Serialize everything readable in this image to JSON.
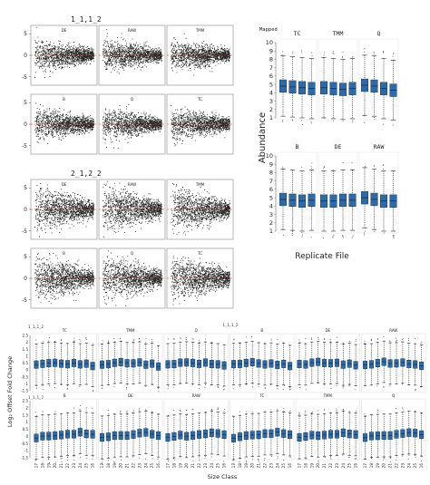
{
  "chart_data": [
    {
      "type": "scatter",
      "subtype": "MA plot grid",
      "title": "1_1,1_2",
      "panels": [
        "DE",
        "RAW",
        "TMM",
        "B",
        "Q",
        "TC"
      ],
      "yticks": [
        "5",
        "0",
        "-5"
      ],
      "reference_line_y": 0,
      "reference_line_color": "#d62728"
    },
    {
      "type": "scatter",
      "subtype": "MA plot grid",
      "title": "2_1,2_2",
      "panels": [
        "DE",
        "RAW",
        "TMM",
        "B",
        "Q",
        "TC"
      ],
      "yticks": [
        "5",
        "0",
        "-5"
      ],
      "reference_line_y": 0,
      "reference_line_color": "#d62728"
    },
    {
      "type": "box",
      "corner_label": "Mapped",
      "ylabel": "Abundance",
      "xlabel": "Replicate File",
      "ylim": [
        1,
        10
      ],
      "yticks": [
        "10",
        "9",
        "8",
        "7",
        "6",
        "5",
        "4",
        "3",
        "2",
        "1"
      ],
      "box_color": "#2f6aa8",
      "panels": [
        {
          "label": "TC",
          "medians": [
            4.8,
            4.7,
            4.6,
            4.5
          ]
        },
        {
          "label": "TMM",
          "medians": [
            4.6,
            4.5,
            4.4,
            4.5
          ]
        },
        {
          "label": "Q",
          "medians": [
            4.9,
            4.8,
            4.5,
            4.3
          ]
        },
        {
          "label": "B",
          "medians": [
            4.8,
            4.7,
            4.6,
            4.7
          ]
        },
        {
          "label": "DE",
          "medians": [
            4.6,
            4.6,
            4.7,
            4.7
          ]
        },
        {
          "label": "RAW",
          "medians": [
            5.0,
            4.8,
            4.6,
            4.6
          ]
        }
      ]
    },
    {
      "type": "box",
      "ylabel": "Log₂ Offset Fold Change",
      "xlabel": "Size Class",
      "ylim": [
        -1.5,
        2.5
      ],
      "yticks": [
        "2.5",
        "2",
        "1.5",
        "1",
        "0.5",
        "0",
        "-0.5",
        "-1",
        "-1.5"
      ],
      "box_color": "#2f6aa8",
      "categories": [
        "17",
        "18",
        "19",
        "20",
        "21",
        "22",
        "23",
        "24",
        "25",
        "16"
      ],
      "row_labels": [
        "1_1,1_2",
        "1_1,1_2"
      ],
      "top_row": [
        {
          "label": "TC"
        },
        {
          "label": "TMM"
        },
        {
          "label": "Q"
        },
        {
          "label": "B",
          "group_label": "1_1,1_2"
        },
        {
          "label": "DE"
        },
        {
          "label": "RAW"
        }
      ],
      "bottom_row": [
        {
          "label": "B"
        },
        {
          "label": "DE"
        },
        {
          "label": "RAW"
        },
        {
          "label": "TC"
        },
        {
          "label": "TMM"
        },
        {
          "label": "Q"
        }
      ],
      "top_medians": [
        0.4,
        0.45,
        0.5,
        0.55,
        0.5,
        0.45,
        0.5,
        0.4,
        0.45,
        0.3
      ],
      "bottom_medians": [
        -0.1,
        0.0,
        0.05,
        0.05,
        0.1,
        0.15,
        0.2,
        0.3,
        0.2,
        0.1
      ]
    }
  ]
}
